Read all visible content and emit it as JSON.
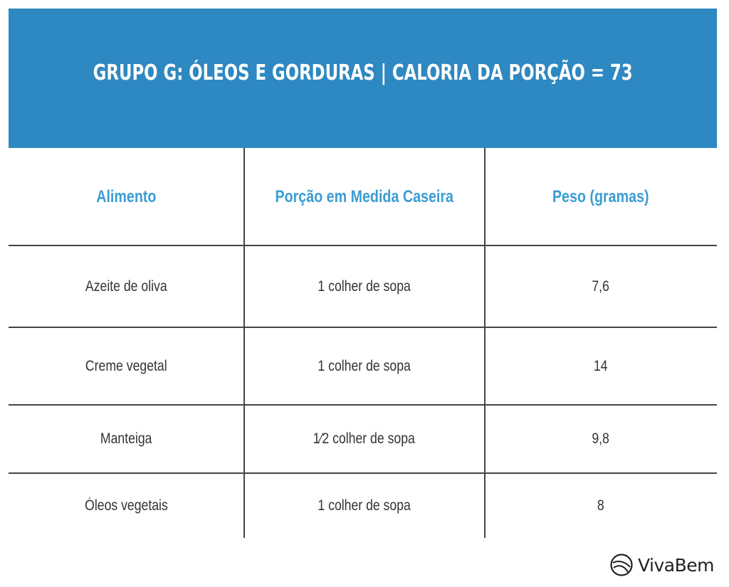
{
  "banner": {
    "title": "GRUPO G: ÓLEOS E GORDURAS | CALORIA DA PORÇÃO = 73",
    "background": "#2e88c1"
  },
  "table": {
    "headers": [
      "Alimento",
      "Porção em Medida Caseira",
      "Peso (gramas)"
    ],
    "header_color": "#3b9dd3",
    "rows": [
      [
        "Azeite de oliva",
        "1 colher de sopa",
        "7,6"
      ],
      [
        "Creme vegetal",
        "1 colher de sopa",
        "14"
      ],
      [
        "Manteiga",
        "1⁄2 colher de sopa",
        "9,8"
      ],
      [
        "Óleos vegetais",
        "1 colher de sopa",
        "8"
      ]
    ]
  },
  "logo": {
    "text": "VivaBem",
    "icon": "vivabem-logo-icon"
  }
}
